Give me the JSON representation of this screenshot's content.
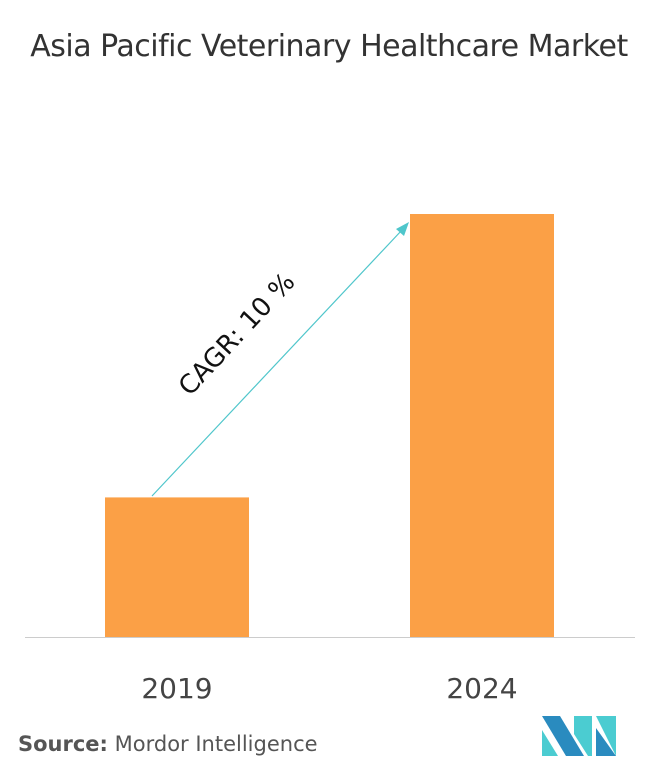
{
  "chart_data": {
    "type": "bar",
    "title": "Asia Pacific Veterinary Healthcare Market",
    "categories": [
      "2019",
      "2024"
    ],
    "values": [
      33,
      100
    ],
    "ylim": [
      0,
      100
    ],
    "grid": false,
    "bar_color": "#FBA046",
    "annotation": {
      "text": "CAGR: 10 %",
      "arrow_color": "#4FC6CB"
    }
  },
  "source": {
    "label": "Source:",
    "text": "Mordor Intelligence"
  },
  "logo": {
    "text": "Mordor Intelligence",
    "colors": [
      "#2A8BBF",
      "#4BCCD1"
    ]
  }
}
